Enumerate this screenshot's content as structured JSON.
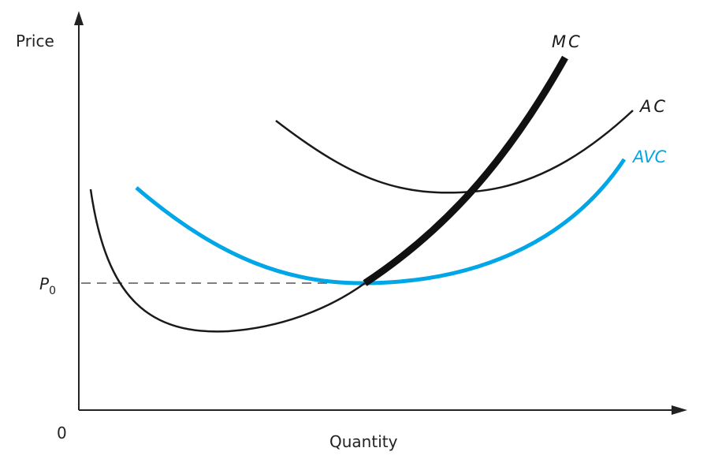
{
  "axes": {
    "y_label": "Price",
    "x_label": "Quantity",
    "origin_label": "0"
  },
  "price_marker": {
    "label": "P",
    "subscript": "0"
  },
  "curves": {
    "mc": {
      "label": "MC",
      "color": "#1a1a1a"
    },
    "ac": {
      "label": "AC",
      "color": "#1a1a1a"
    },
    "avc": {
      "label": "AVC",
      "color": "#00a6e6"
    }
  },
  "colors": {
    "axis": "#222222",
    "dashed_line": "#555555"
  }
}
